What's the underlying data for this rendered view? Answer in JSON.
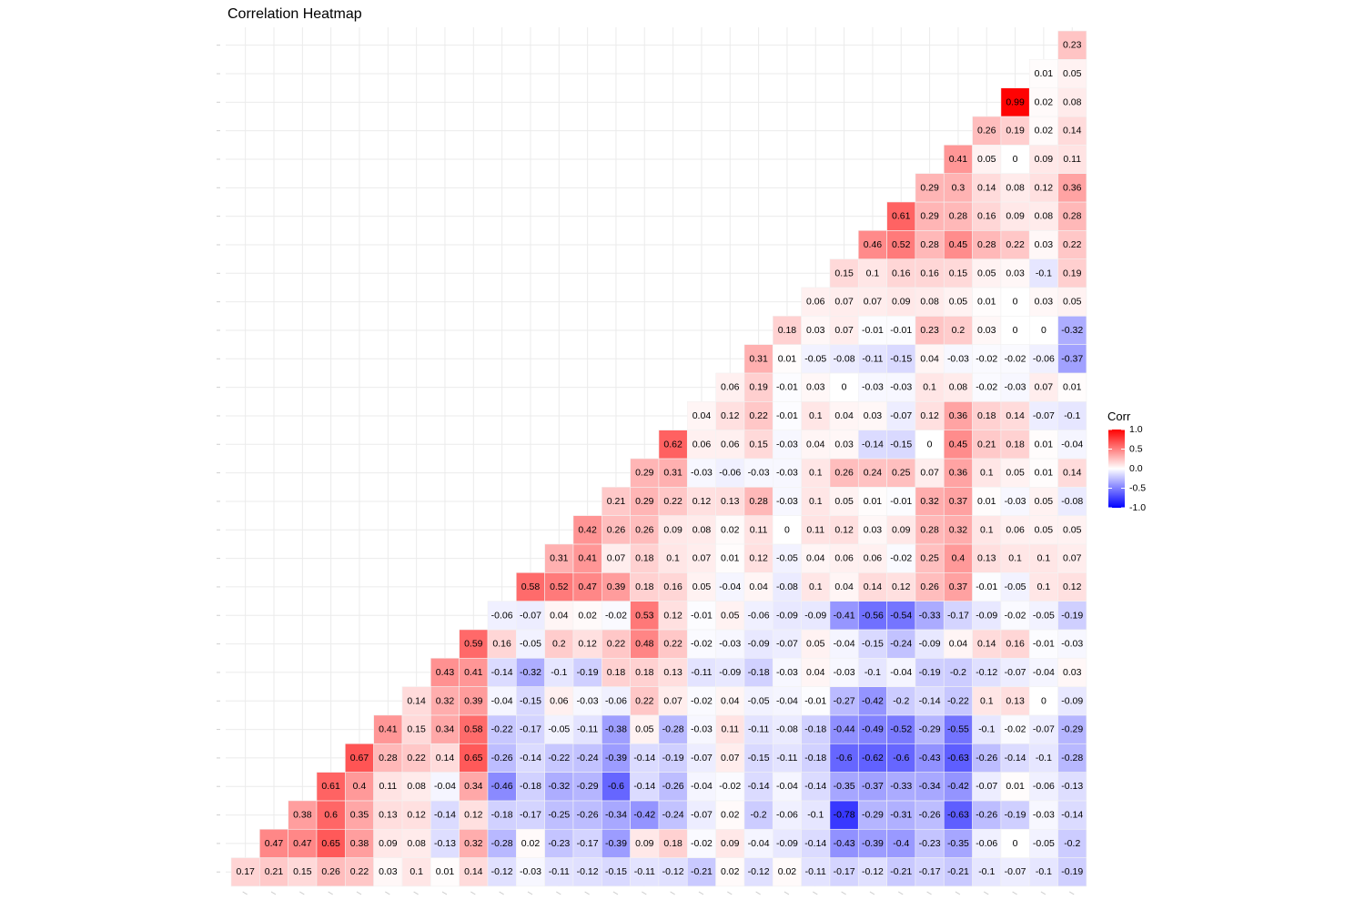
{
  "chart_data": {
    "type": "heatmap",
    "title": "Correlation Heatmap",
    "layout": "lower-triangle",
    "n": 30,
    "grid": true,
    "legend": {
      "title": "Corr",
      "position": "right",
      "ticks": [
        "1.0",
        "0.5",
        "0.0",
        "-0.5",
        "-1.0"
      ],
      "range": [
        -1,
        1
      ],
      "colors": {
        "low": "#0000FF",
        "mid": "#FFFFFF",
        "high": "#FF0000"
      }
    },
    "rows": [
      [
        0.17,
        0.21,
        0.15,
        0.26,
        0.22,
        0.03,
        0.1,
        0.01,
        0.14,
        -0.12,
        -0.03,
        -0.11,
        -0.12,
        -0.15,
        -0.11,
        -0.12,
        -0.21,
        0.02,
        -0.12,
        0.02,
        -0.11,
        -0.17,
        -0.12,
        -0.21,
        -0.17,
        -0.21,
        -0.1,
        -0.07,
        -0.1,
        -0.19
      ],
      [
        0.47,
        0.47,
        0.65,
        0.38,
        0.09,
        0.08,
        -0.13,
        0.32,
        -0.28,
        0.02,
        -0.23,
        -0.17,
        -0.39,
        0.09,
        0.18,
        -0.02,
        0.09,
        -0.04,
        -0.09,
        -0.14,
        -0.43,
        -0.39,
        -0.4,
        -0.23,
        -0.35,
        -0.06,
        0,
        -0.05,
        -0.2
      ],
      [
        0.38,
        0.6,
        0.35,
        0.13,
        0.12,
        -0.14,
        0.12,
        -0.18,
        -0.17,
        -0.25,
        -0.26,
        -0.34,
        -0.42,
        -0.24,
        -0.07,
        0.02,
        -0.2,
        -0.06,
        -0.1,
        -0.78,
        -0.29,
        -0.31,
        -0.26,
        -0.63,
        -0.26,
        -0.19,
        -0.03,
        -0.14
      ],
      [
        0.61,
        0.4,
        0.11,
        0.08,
        -0.04,
        0.34,
        -0.46,
        -0.18,
        -0.32,
        -0.29,
        -0.6,
        -0.14,
        -0.26,
        -0.04,
        -0.02,
        -0.14,
        -0.04,
        -0.14,
        -0.35,
        -0.37,
        -0.33,
        -0.34,
        -0.42,
        -0.07,
        0.01,
        -0.06,
        -0.13
      ],
      [
        0.67,
        0.28,
        0.22,
        0.14,
        0.65,
        -0.26,
        -0.14,
        -0.22,
        -0.24,
        -0.39,
        -0.14,
        -0.19,
        -0.07,
        0.07,
        -0.15,
        -0.11,
        -0.18,
        -0.6,
        -0.62,
        -0.6,
        -0.43,
        -0.63,
        -0.26,
        -0.14,
        -0.1,
        -0.28
      ],
      [
        0.41,
        0.15,
        0.34,
        0.58,
        -0.22,
        -0.17,
        -0.05,
        -0.11,
        -0.38,
        0.05,
        -0.28,
        -0.03,
        0.11,
        -0.11,
        -0.08,
        -0.18,
        -0.44,
        -0.49,
        -0.52,
        -0.29,
        -0.55,
        -0.1,
        -0.02,
        -0.07,
        -0.29
      ],
      [
        0.14,
        0.32,
        0.39,
        -0.04,
        -0.15,
        0.06,
        -0.03,
        -0.06,
        0.22,
        0.07,
        -0.02,
        0.04,
        -0.05,
        -0.04,
        -0.01,
        -0.27,
        -0.42,
        -0.2,
        -0.14,
        -0.22,
        0.1,
        0.13,
        0,
        -0.09
      ],
      [
        0.43,
        0.41,
        -0.14,
        -0.32,
        -0.1,
        -0.19,
        0.18,
        0.18,
        0.13,
        -0.11,
        -0.09,
        -0.18,
        -0.03,
        0.04,
        -0.03,
        -0.1,
        -0.04,
        -0.19,
        -0.2,
        -0.12,
        -0.07,
        -0.04,
        0.03
      ],
      [
        0.59,
        0.16,
        -0.05,
        0.2,
        0.12,
        0.22,
        0.48,
        0.22,
        -0.02,
        -0.03,
        -0.09,
        -0.07,
        0.05,
        -0.04,
        -0.15,
        -0.24,
        -0.09,
        0.04,
        0.14,
        0.16,
        -0.01,
        -0.03
      ],
      [
        -0.06,
        -0.07,
        0.04,
        0.02,
        -0.02,
        0.53,
        0.12,
        -0.01,
        0.05,
        -0.06,
        -0.09,
        -0.09,
        -0.41,
        -0.56,
        -0.54,
        -0.33,
        -0.17,
        -0.09,
        -0.02,
        -0.05,
        -0.19
      ],
      [
        0.58,
        0.52,
        0.47,
        0.39,
        0.18,
        0.16,
        0.05,
        -0.04,
        0.04,
        -0.08,
        0.1,
        0.04,
        0.14,
        0.12,
        0.26,
        0.37,
        -0.01,
        -0.05,
        0.1,
        0.12
      ],
      [
        0.31,
        0.41,
        0.07,
        0.18,
        0.1,
        0.07,
        0.01,
        0.12,
        -0.05,
        0.04,
        0.06,
        0.06,
        -0.02,
        0.25,
        0.4,
        0.13,
        0.1,
        0.1,
        0.07
      ],
      [
        0.42,
        0.26,
        0.26,
        0.09,
        0.08,
        0.02,
        0.11,
        0,
        0.11,
        0.12,
        0.03,
        0.09,
        0.28,
        0.32,
        0.1,
        0.06,
        0.05,
        0.05
      ],
      [
        0.21,
        0.29,
        0.22,
        0.12,
        0.13,
        0.28,
        -0.03,
        0.1,
        0.05,
        0.01,
        -0.01,
        0.32,
        0.37,
        0.01,
        -0.03,
        0.05,
        -0.08
      ],
      [
        0.29,
        0.31,
        -0.03,
        -0.06,
        -0.03,
        -0.03,
        0.1,
        0.26,
        0.24,
        0.25,
        0.07,
        0.36,
        0.1,
        0.05,
        0.01,
        0.14
      ],
      [
        0.62,
        0.06,
        0.06,
        0.15,
        -0.03,
        0.04,
        0.03,
        -0.14,
        -0.15,
        0,
        0.45,
        0.21,
        0.18,
        0.01,
        -0.04
      ],
      [
        0.04,
        0.12,
        0.22,
        -0.01,
        0.1,
        0.04,
        0.03,
        -0.07,
        0.12,
        0.36,
        0.18,
        0.14,
        -0.07,
        -0.1
      ],
      [
        0.06,
        0.19,
        -0.01,
        0.03,
        0,
        -0.03,
        -0.03,
        0.1,
        0.08,
        -0.02,
        -0.03,
        0.07,
        0.01
      ],
      [
        0.31,
        0.01,
        -0.05,
        -0.08,
        -0.11,
        -0.15,
        0.04,
        -0.03,
        -0.02,
        -0.02,
        -0.06,
        -0.37
      ],
      [
        0.18,
        0.03,
        0.07,
        -0.01,
        -0.01,
        0.23,
        0.2,
        0.03,
        0,
        0,
        -0.32
      ],
      [
        0.06,
        0.07,
        0.07,
        0.09,
        0.08,
        0.05,
        0.01,
        0,
        0.03,
        0.05
      ],
      [
        0.15,
        0.1,
        0.16,
        0.16,
        0.15,
        0.05,
        0.03,
        -0.1,
        0.19
      ],
      [
        0.46,
        0.52,
        0.28,
        0.45,
        0.28,
        0.22,
        0.03,
        0.22
      ],
      [
        0.61,
        0.29,
        0.28,
        0.16,
        0.09,
        0.08,
        0.28
      ],
      [
        0.29,
        0.3,
        0.14,
        0.08,
        0.12,
        0.36
      ],
      [
        0.41,
        0.05,
        0,
        0.09,
        0.11
      ],
      [
        0.26,
        0.19,
        0.02,
        0.14
      ],
      [
        0.99,
        0.02,
        0.08
      ],
      [
        0.01,
        0.05
      ],
      [
        0.23
      ]
    ]
  }
}
